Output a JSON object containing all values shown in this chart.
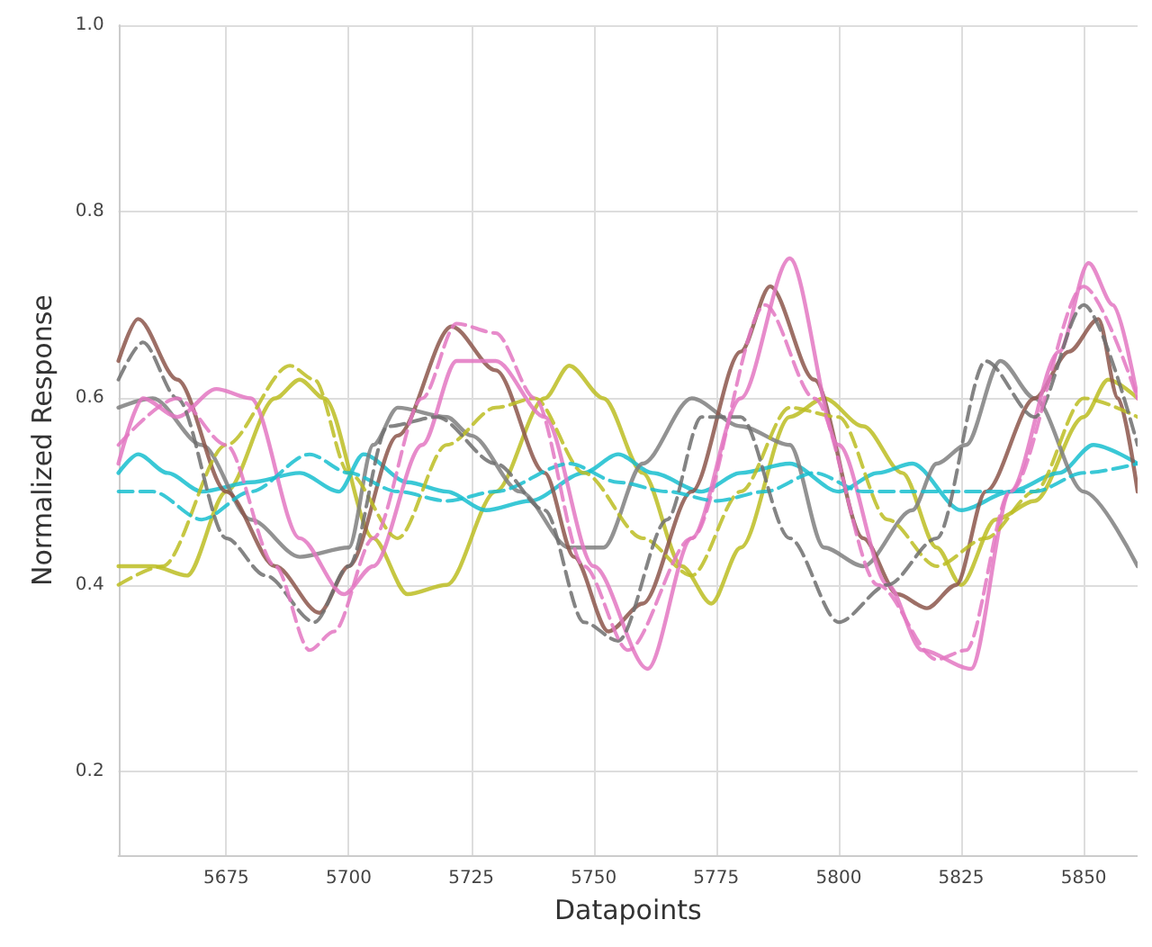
{
  "chart_data": {
    "type": "line",
    "xlabel": "Datapoints",
    "ylabel": "Normalized Response",
    "xlim": [
      5653,
      5861
    ],
    "ylim": [
      0.11,
      1.0
    ],
    "xticks": [
      5675,
      5700,
      5725,
      5750,
      5775,
      5800,
      5825,
      5850
    ],
    "yticks": [
      0.2,
      0.4,
      0.6,
      0.8,
      {
        "value": 1.0,
        "label": "1.0"
      }
    ],
    "grid": true,
    "marker": "none",
    "series": [
      {
        "color": "#bcbd22",
        "line_style": "solid",
        "x": [
          5653,
          5660,
          5667,
          5675,
          5685,
          5690,
          5695,
          5705,
          5712,
          5720,
          5730,
          5740,
          5745,
          5752,
          5760,
          5768,
          5774,
          5780,
          5790,
          5797,
          5805,
          5813,
          5820,
          5825,
          5832,
          5840,
          5850,
          5855,
          5861
        ],
        "values": [
          0.42,
          0.42,
          0.41,
          0.5,
          0.6,
          0.62,
          0.6,
          0.45,
          0.39,
          0.4,
          0.5,
          0.6,
          0.635,
          0.6,
          0.52,
          0.42,
          0.38,
          0.44,
          0.58,
          0.6,
          0.57,
          0.52,
          0.44,
          0.4,
          0.47,
          0.49,
          0.58,
          0.62,
          0.6
        ]
      },
      {
        "color": "#17becf",
        "line_style": "solid",
        "x": [
          5653,
          5657,
          5663,
          5670,
          5680,
          5690,
          5698,
          5703,
          5712,
          5720,
          5728,
          5737,
          5748,
          5755,
          5762,
          5772,
          5780,
          5790,
          5800,
          5808,
          5815,
          5825,
          5835,
          5845,
          5852,
          5861
        ],
        "values": [
          0.52,
          0.54,
          0.52,
          0.5,
          0.51,
          0.52,
          0.5,
          0.54,
          0.51,
          0.5,
          0.48,
          0.49,
          0.52,
          0.54,
          0.52,
          0.5,
          0.52,
          0.53,
          0.5,
          0.52,
          0.53,
          0.48,
          0.5,
          0.52,
          0.55,
          0.53
        ]
      },
      {
        "color": "#7f7f7f",
        "line_style": "solid",
        "x": [
          5653,
          5660,
          5670,
          5680,
          5690,
          5700,
          5705,
          5710,
          5720,
          5725,
          5735,
          5745,
          5752,
          5760,
          5770,
          5780,
          5790,
          5797,
          5805,
          5815,
          5820,
          5826,
          5833,
          5840,
          5850,
          5861
        ],
        "values": [
          0.59,
          0.6,
          0.55,
          0.47,
          0.43,
          0.44,
          0.55,
          0.59,
          0.58,
          0.56,
          0.5,
          0.44,
          0.44,
          0.53,
          0.6,
          0.57,
          0.55,
          0.44,
          0.42,
          0.48,
          0.53,
          0.55,
          0.64,
          0.6,
          0.5,
          0.42
        ]
      },
      {
        "color": "#8c564b",
        "line_style": "solid",
        "x": [
          5653,
          5657,
          5665,
          5675,
          5685,
          5694,
          5700,
          5710,
          5721,
          5730,
          5740,
          5746,
          5753,
          5760,
          5770,
          5780,
          5786,
          5795,
          5805,
          5812,
          5818,
          5824,
          5830,
          5840,
          5847,
          5853,
          5857,
          5861
        ],
        "values": [
          0.64,
          0.685,
          0.62,
          0.5,
          0.42,
          0.37,
          0.42,
          0.56,
          0.677,
          0.63,
          0.52,
          0.43,
          0.35,
          0.38,
          0.5,
          0.65,
          0.72,
          0.62,
          0.45,
          0.39,
          0.375,
          0.4,
          0.5,
          0.6,
          0.65,
          0.685,
          0.6,
          0.5
        ]
      },
      {
        "color": "#e377c2",
        "line_style": "solid",
        "x": [
          5653,
          5658,
          5665,
          5673,
          5680,
          5690,
          5699,
          5705,
          5715,
          5722,
          5730,
          5740,
          5750,
          5761,
          5770,
          5780,
          5790,
          5800,
          5810,
          5817,
          5827,
          5835,
          5845,
          5851,
          5856,
          5861
        ],
        "values": [
          0.53,
          0.6,
          0.58,
          0.61,
          0.6,
          0.45,
          0.39,
          0.42,
          0.55,
          0.64,
          0.64,
          0.58,
          0.42,
          0.31,
          0.45,
          0.6,
          0.75,
          0.55,
          0.4,
          0.33,
          0.31,
          0.5,
          0.65,
          0.745,
          0.7,
          0.6
        ]
      },
      {
        "color": "#bcbd22",
        "line_style": "dashed",
        "x": [
          5653,
          5662,
          5675,
          5688,
          5693,
          5700,
          5710,
          5720,
          5730,
          5738,
          5748,
          5760,
          5770,
          5780,
          5790,
          5800,
          5810,
          5820,
          5830,
          5840,
          5850,
          5861
        ],
        "values": [
          0.4,
          0.42,
          0.55,
          0.635,
          0.62,
          0.52,
          0.45,
          0.55,
          0.59,
          0.6,
          0.52,
          0.45,
          0.41,
          0.5,
          0.59,
          0.58,
          0.47,
          0.42,
          0.45,
          0.5,
          0.6,
          0.58
        ]
      },
      {
        "color": "#17becf",
        "line_style": "dashed",
        "x": [
          5653,
          5660,
          5670,
          5680,
          5692,
          5700,
          5710,
          5720,
          5730,
          5745,
          5755,
          5765,
          5775,
          5785,
          5795,
          5805,
          5815,
          5825,
          5840,
          5850,
          5861
        ],
        "values": [
          0.5,
          0.5,
          0.47,
          0.5,
          0.54,
          0.52,
          0.5,
          0.49,
          0.5,
          0.53,
          0.51,
          0.5,
          0.49,
          0.5,
          0.52,
          0.5,
          0.5,
          0.5,
          0.5,
          0.52,
          0.53
        ]
      },
      {
        "color": "#6e6e6e",
        "line_style": "dashed",
        "x": [
          5653,
          5658,
          5665,
          5675,
          5683,
          5693,
          5700,
          5708,
          5718,
          5730,
          5740,
          5748,
          5755,
          5765,
          5772,
          5780,
          5790,
          5800,
          5810,
          5820,
          5830,
          5840,
          5850,
          5861
        ],
        "values": [
          0.62,
          0.66,
          0.6,
          0.45,
          0.41,
          0.36,
          0.42,
          0.57,
          0.58,
          0.53,
          0.48,
          0.36,
          0.34,
          0.47,
          0.58,
          0.58,
          0.45,
          0.36,
          0.4,
          0.45,
          0.64,
          0.58,
          0.7,
          0.55
        ]
      },
      {
        "color": "#e377c2",
        "line_style": "dashed",
        "x": [
          5653,
          5665,
          5675,
          5685,
          5692,
          5697,
          5705,
          5715,
          5722,
          5730,
          5738,
          5748,
          5757,
          5770,
          5785,
          5795,
          5808,
          5820,
          5826,
          5835,
          5850,
          5861
        ],
        "values": [
          0.55,
          0.6,
          0.55,
          0.42,
          0.33,
          0.35,
          0.45,
          0.6,
          0.68,
          0.67,
          0.6,
          0.42,
          0.33,
          0.45,
          0.7,
          0.6,
          0.4,
          0.32,
          0.33,
          0.5,
          0.72,
          0.6
        ]
      }
    ]
  }
}
